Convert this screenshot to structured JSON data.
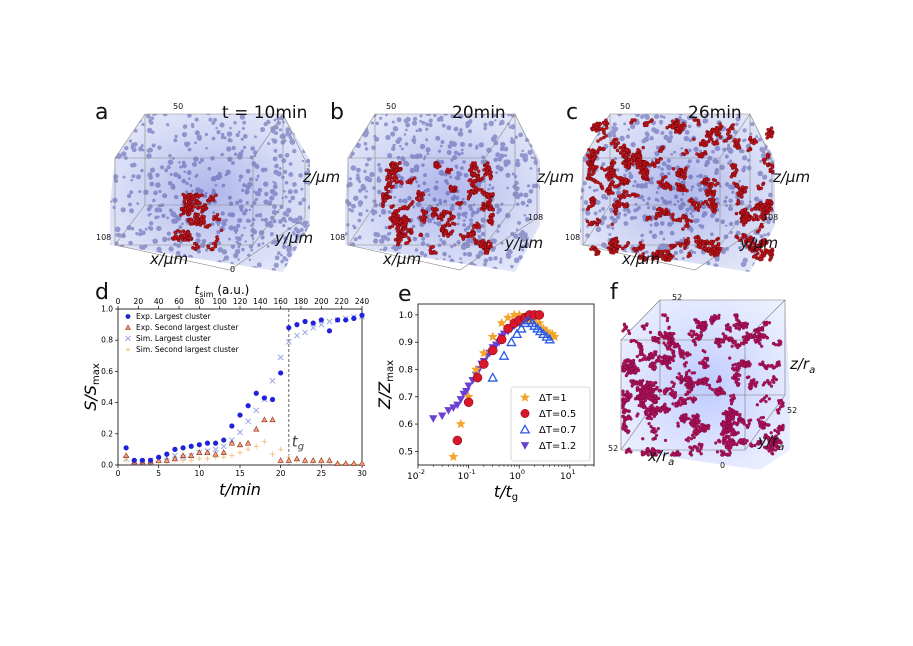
{
  "panels": {
    "a": {
      "letter": "a",
      "time": "t = 10min",
      "tick_top": "50",
      "tick_left": "108",
      "tick_bottom": "0",
      "x_label": "x/μm",
      "y_label": "y/μm",
      "z_label": "z/μm"
    },
    "b": {
      "letter": "b",
      "time": "20min",
      "tick_top": "50",
      "tick_left": "108",
      "tick_right": "108",
      "x_label": "x/μm",
      "y_label": "y/μm",
      "z_label": "z/μm"
    },
    "c": {
      "letter": "c",
      "time": "26min",
      "tick_top": "50",
      "tick_left": "108",
      "tick_right": "108",
      "x_label": "x/μm",
      "y_label": "y/μm",
      "z_label": "z/μm"
    },
    "d": {
      "letter": "d"
    },
    "e": {
      "letter": "e"
    },
    "f": {
      "letter": "f",
      "tick_top": "52",
      "tick_left": "52",
      "tick_right": "52",
      "tick_bottom": "0",
      "x_label": "x/r",
      "x_sub": "a",
      "y_label": "y/r",
      "y_sub": "a",
      "z_label": "z/r",
      "z_sub": "a"
    }
  },
  "chart_data": [
    {
      "type": "scatter",
      "panel": "d",
      "xlabel": "t/min",
      "ylabel": "S/S",
      "ylabel_sub": "max",
      "top_xlabel": "t",
      "top_xlabel_sub": "sim",
      "top_xlabel_unit": " (a.u.)",
      "xlim": [
        0,
        30
      ],
      "ylim": [
        0,
        1.0
      ],
      "xticks": [
        0,
        5,
        10,
        15,
        20,
        25,
        30
      ],
      "yticks": [
        0.0,
        0.2,
        0.4,
        0.6,
        0.8,
        1.0
      ],
      "top_xlim": [
        0,
        240
      ],
      "top_xticks": [
        0,
        20,
        40,
        60,
        80,
        100,
        120,
        140,
        160,
        180,
        200,
        220,
        240
      ],
      "annotation": "t",
      "annotation_sub": "g",
      "tg": 21,
      "legend_position": "top-left",
      "series": [
        {
          "name": "Exp. Largest cluster",
          "color": "#1f22d9",
          "marker": "circle",
          "x": [
            1,
            2,
            3,
            4,
            5,
            6,
            7,
            8,
            9,
            10,
            11,
            12,
            13,
            14,
            15,
            16,
            17,
            18,
            19,
            20,
            21,
            22,
            23,
            24,
            25,
            26,
            27,
            28,
            29,
            30
          ],
          "y": [
            0.11,
            0.03,
            0.03,
            0.03,
            0.05,
            0.07,
            0.1,
            0.11,
            0.12,
            0.13,
            0.14,
            0.14,
            0.16,
            0.25,
            0.32,
            0.38,
            0.46,
            0.43,
            0.42,
            0.59,
            0.88,
            0.9,
            0.92,
            0.91,
            0.93,
            0.86,
            0.93,
            0.93,
            0.94,
            0.96
          ]
        },
        {
          "name": "Exp. Second largest cluster",
          "color": "#e66f4c",
          "marker": "triangle",
          "x": [
            1,
            2,
            3,
            4,
            5,
            6,
            7,
            8,
            9,
            10,
            11,
            12,
            13,
            14,
            15,
            16,
            17,
            18,
            19,
            20,
            21,
            22,
            23,
            24,
            25,
            26,
            27,
            28,
            29,
            30
          ],
          "y": [
            0.06,
            0.02,
            0.02,
            0.02,
            0.03,
            0.03,
            0.04,
            0.06,
            0.06,
            0.08,
            0.08,
            0.07,
            0.08,
            0.14,
            0.13,
            0.14,
            0.23,
            0.29,
            0.29,
            0.03,
            0.03,
            0.04,
            0.03,
            0.03,
            0.03,
            0.03,
            0.01,
            0.01,
            0.01,
            0.01
          ]
        },
        {
          "name": "Sim. Largest cluster",
          "color": "#9ba7e6",
          "marker": "x",
          "x": [
            1,
            2,
            3,
            4,
            5,
            6,
            7,
            8,
            9,
            10,
            11,
            12,
            13,
            14,
            15,
            16,
            17,
            18,
            19,
            20,
            21,
            22,
            23,
            24,
            25,
            26,
            27,
            28,
            29,
            30
          ],
          "y": [
            0.04,
            0.02,
            0.02,
            0.03,
            0.03,
            0.05,
            0.06,
            0.05,
            0.06,
            0.08,
            0.09,
            0.1,
            0.12,
            0.16,
            0.21,
            0.28,
            0.35,
            0.42,
            0.54,
            0.69,
            0.79,
            0.83,
            0.85,
            0.88,
            0.9,
            0.92,
            0.93,
            0.94,
            0.95,
            0.95
          ]
        },
        {
          "name": "Sim. Second largest cluster",
          "color": "#f4c58c",
          "marker": "plus",
          "x": [
            1,
            2,
            3,
            4,
            5,
            6,
            7,
            8,
            9,
            10,
            11,
            12,
            13,
            14,
            15,
            16,
            17,
            18,
            19,
            20,
            21,
            22,
            23,
            24,
            25,
            26,
            27,
            28,
            29,
            30
          ],
          "y": [
            0.03,
            0.02,
            0.02,
            0.02,
            0.02,
            0.02,
            0.03,
            0.03,
            0.03,
            0.04,
            0.04,
            0.05,
            0.05,
            0.06,
            0.08,
            0.1,
            0.12,
            0.15,
            0.07,
            0.1,
            0.05,
            0.03,
            0.02,
            0.02,
            0.02,
            0.02,
            0.01,
            0.01,
            0.01,
            0.01
          ]
        }
      ]
    },
    {
      "type": "scatter",
      "panel": "e",
      "xlabel": "t/t",
      "xlabel_sub": "g",
      "ylabel": "Z/Z",
      "ylabel_sub": "max",
      "xscale": "log",
      "xlim": [
        0.01,
        30
      ],
      "ylim": [
        0.45,
        1.04
      ],
      "xticks": [
        0.01,
        0.1,
        1,
        10
      ],
      "xtick_bases": [
        "10",
        "10",
        "10",
        "10"
      ],
      "xtick_exps": [
        "-2",
        "-1",
        "0",
        "1"
      ],
      "yticks": [
        0.5,
        0.6,
        0.7,
        0.8,
        0.9,
        1.0
      ],
      "legend_position": "bottom-right",
      "series": [
        {
          "name": "ΔT=1",
          "color": "#f5a42b",
          "marker": "star",
          "x": [
            0.05,
            0.07,
            0.1,
            0.14,
            0.2,
            0.3,
            0.45,
            0.6,
            0.8,
            1.0,
            1.2,
            1.5,
            2.0,
            2.5,
            3.0,
            3.5,
            4.0,
            4.5,
            5.0
          ],
          "y": [
            0.48,
            0.6,
            0.7,
            0.8,
            0.86,
            0.92,
            0.97,
            0.99,
            1.0,
            1.0,
            0.99,
            0.98,
            0.98,
            0.97,
            0.95,
            0.94,
            0.93,
            0.93,
            0.92
          ]
        },
        {
          "name": "ΔT=0.5",
          "color": "#d9172c",
          "marker": "circle",
          "x": [
            0.06,
            0.1,
            0.15,
            0.2,
            0.3,
            0.45,
            0.6,
            0.8,
            1.0,
            1.3,
            1.6,
            2.0,
            2.5
          ],
          "y": [
            0.54,
            0.68,
            0.77,
            0.82,
            0.87,
            0.91,
            0.95,
            0.97,
            0.98,
            0.99,
            1.0,
            1.0,
            1.0
          ]
        },
        {
          "name": "ΔT=0.7",
          "color": "#2b59e3",
          "marker": "triangle-open",
          "x": [
            0.3,
            0.5,
            0.7,
            0.9,
            1.1,
            1.3,
            1.5,
            1.8,
            2.0,
            2.3,
            2.6,
            3.0,
            3.5,
            4.0
          ],
          "y": [
            0.77,
            0.85,
            0.9,
            0.93,
            0.95,
            0.97,
            0.98,
            0.97,
            0.96,
            0.95,
            0.94,
            0.93,
            0.92,
            0.91
          ]
        },
        {
          "name": "ΔT=1.2",
          "color": "#6a3fd1",
          "marker": "triangle-down",
          "x": [
            0.02,
            0.03,
            0.04,
            0.05,
            0.06,
            0.07,
            0.08,
            0.09,
            0.1,
            0.12,
            0.14,
            0.16,
            0.18,
            0.2,
            0.23,
            0.26,
            0.3,
            0.35,
            0.4,
            0.45,
            0.5,
            0.6,
            0.7,
            0.8,
            0.9,
            1.0,
            1.1,
            1.2,
            1.4,
            1.6,
            1.8,
            2.0
          ],
          "y": [
            0.62,
            0.63,
            0.65,
            0.66,
            0.67,
            0.69,
            0.71,
            0.72,
            0.74,
            0.76,
            0.78,
            0.8,
            0.82,
            0.83,
            0.85,
            0.86,
            0.88,
            0.89,
            0.9,
            0.92,
            0.93,
            0.94,
            0.95,
            0.96,
            0.97,
            0.97,
            0.98,
            0.98,
            0.99,
            0.99,
            1.0,
            1.0
          ]
        }
      ]
    }
  ]
}
